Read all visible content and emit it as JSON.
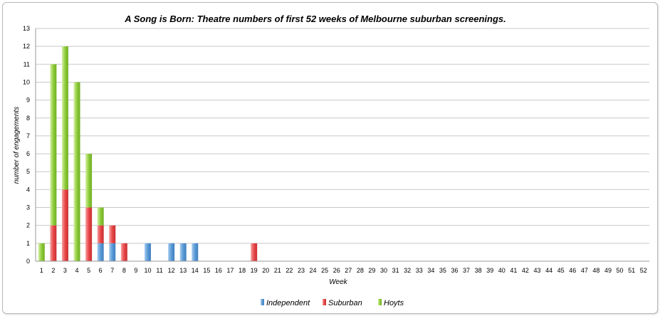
{
  "chart_data": {
    "type": "bar",
    "stacked": true,
    "title": "A Song is Born: Theatre numbers of first 52 weeks of Melbourne suburban screenings.",
    "xlabel": "Week",
    "ylabel": "number of engagements",
    "ylim": [
      0,
      13
    ],
    "yticks": [
      0,
      1,
      2,
      3,
      4,
      5,
      6,
      7,
      8,
      9,
      10,
      11,
      12,
      13
    ],
    "grid": true,
    "legend_position": "bottom",
    "categories": [
      "1",
      "2",
      "3",
      "4",
      "5",
      "6",
      "7",
      "8",
      "9",
      "10",
      "11",
      "12",
      "13",
      "14",
      "15",
      "16",
      "17",
      "18",
      "19",
      "20",
      "21",
      "22",
      "23",
      "24",
      "25",
      "26",
      "27",
      "28",
      "29",
      "30",
      "31",
      "32",
      "33",
      "34",
      "35",
      "36",
      "37",
      "38",
      "39",
      "40",
      "41",
      "42",
      "43",
      "44",
      "45",
      "46",
      "47",
      "48",
      "49",
      "50",
      "51",
      "52"
    ],
    "series": [
      {
        "name": "Independent",
        "color": "#5b9bd5",
        "values": [
          0,
          0,
          0,
          0,
          0,
          1,
          1,
          0,
          0,
          1,
          0,
          1,
          1,
          1,
          0,
          0,
          0,
          0,
          0,
          0,
          0,
          0,
          0,
          0,
          0,
          0,
          0,
          0,
          0,
          0,
          0,
          0,
          0,
          0,
          0,
          0,
          0,
          0,
          0,
          0,
          0,
          0,
          0,
          0,
          0,
          0,
          0,
          0,
          0,
          0,
          0,
          0
        ]
      },
      {
        "name": "Suburban",
        "color": "#e8484a",
        "values": [
          0,
          2,
          4,
          0,
          3,
          1,
          1,
          1,
          0,
          0,
          0,
          0,
          0,
          0,
          0,
          0,
          0,
          0,
          1,
          0,
          0,
          0,
          0,
          0,
          0,
          0,
          0,
          0,
          0,
          0,
          0,
          0,
          0,
          0,
          0,
          0,
          0,
          0,
          0,
          0,
          0,
          0,
          0,
          0,
          0,
          0,
          0,
          0,
          0,
          0,
          0,
          0
        ]
      },
      {
        "name": "Hoyts",
        "color": "#8fcc3c",
        "values": [
          1,
          9,
          8,
          10,
          3,
          1,
          0,
          0,
          0,
          0,
          0,
          0,
          0,
          0,
          0,
          0,
          0,
          0,
          0,
          0,
          0,
          0,
          0,
          0,
          0,
          0,
          0,
          0,
          0,
          0,
          0,
          0,
          0,
          0,
          0,
          0,
          0,
          0,
          0,
          0,
          0,
          0,
          0,
          0,
          0,
          0,
          0,
          0,
          0,
          0,
          0,
          0
        ]
      }
    ]
  }
}
